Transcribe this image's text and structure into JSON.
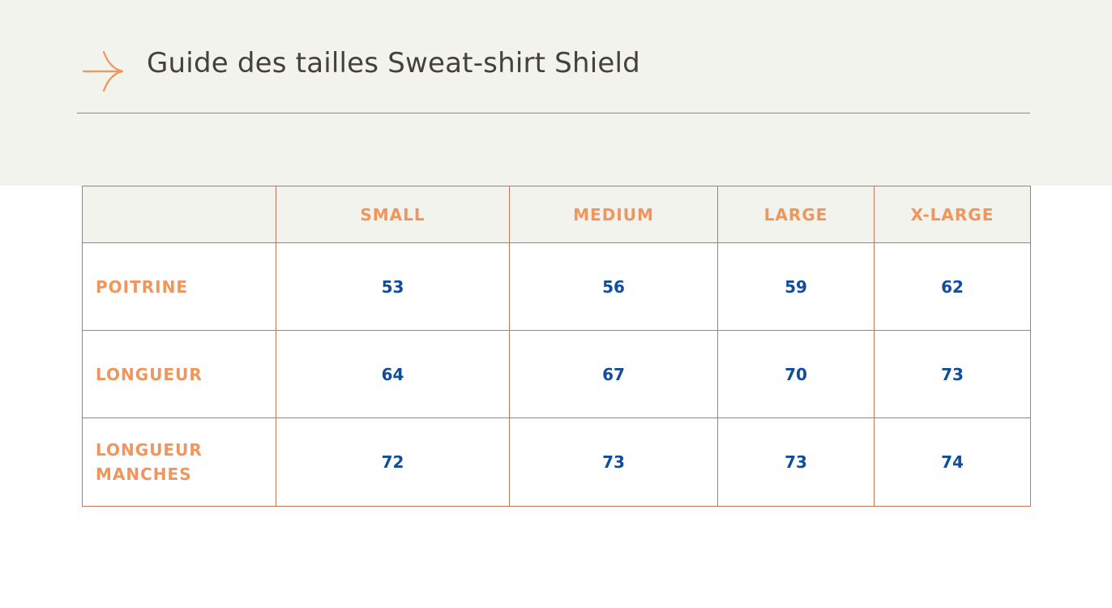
{
  "header": {
    "title": "Guide des tailles Sweat-shirt Shield",
    "icon": "arrow-right-icon",
    "accent_color": "#f0955c",
    "rule_color": "#c8735a"
  },
  "size_table": {
    "columns": [
      "",
      "SMALL",
      "MEDIUM",
      "LARGE",
      "X-LARGE"
    ],
    "rows": [
      {
        "label": "POITRINE",
        "values": [
          "53",
          "56",
          "59",
          "62"
        ]
      },
      {
        "label": "LONGUEUR",
        "values": [
          "64",
          "67",
          "70",
          "73"
        ]
      },
      {
        "label": "LONGUEUR MANCHES",
        "values": [
          "72",
          "73",
          "73",
          "74"
        ]
      }
    ],
    "label_color": "#f0955c",
    "value_color": "#124c9c"
  }
}
